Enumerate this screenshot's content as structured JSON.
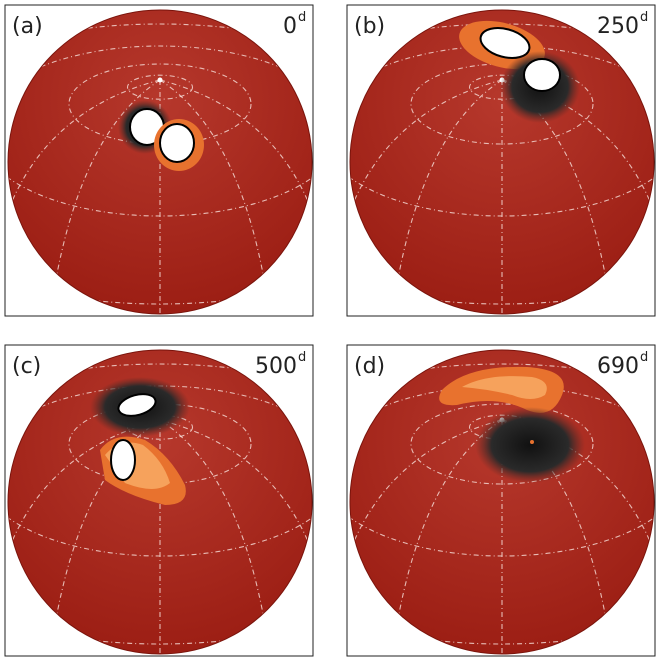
{
  "panels": [
    {
      "label": "(a)",
      "time": "0",
      "unit": "d"
    },
    {
      "label": "(b)",
      "time": "250",
      "unit": "d"
    },
    {
      "label": "(c)",
      "time": "500",
      "unit": "d"
    },
    {
      "label": "(d)",
      "time": "690",
      "unit": "d"
    }
  ]
}
